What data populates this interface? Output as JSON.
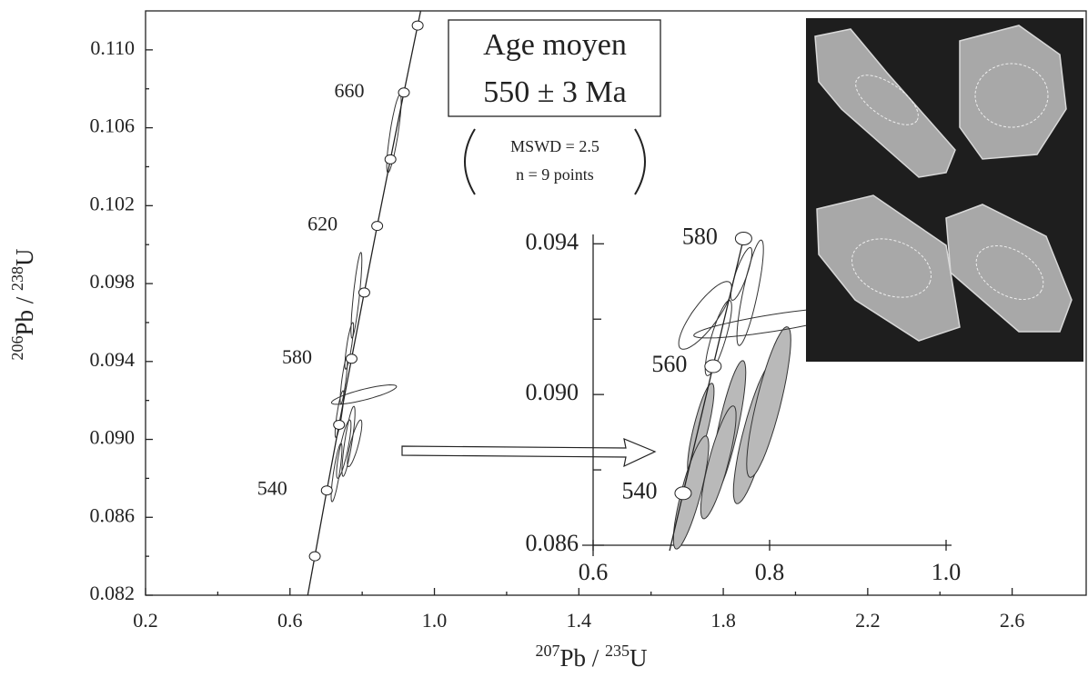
{
  "chart_data": [
    {
      "type": "concordia",
      "x_label": [
        "207",
        "Pb / ",
        "235",
        "U"
      ],
      "y_label": [
        "206",
        "Pb / ",
        "238",
        "U"
      ],
      "xlim": [
        0.2,
        2.8
      ],
      "ylim": [
        0.082,
        0.112
      ],
      "xticks": [
        0.2,
        0.6,
        {
          "value": 1,
          "label": "1.0"
        },
        1.4,
        1.8,
        2.2,
        2.6
      ],
      "xminorticks": [
        0.4,
        0.8,
        1.2,
        1.6,
        2,
        2.4
      ],
      "yticks": [
        0.082,
        0.086,
        {
          "value": 0.09,
          "label": "0.090"
        },
        0.094,
        0.098,
        0.102,
        0.106,
        {
          "value": 0.11,
          "label": "0.110"
        }
      ],
      "yminorticks": [
        0.084,
        0.088,
        0.092,
        0.096,
        0.1,
        0.104,
        0.108
      ],
      "concordia": {
        "x": [
          0.6688,
          0.702,
          0.7359,
          0.7705,
          0.8057,
          0.8415,
          0.8782,
          0.9155,
          0.9536
        ],
        "y": [
          0.084,
          0.08738,
          0.09075,
          0.09414,
          0.09754,
          0.10096,
          0.10438,
          0.10781,
          0.11125
        ],
        "labels": [
          null,
          "540",
          null,
          "580",
          null,
          "620",
          null,
          "660",
          null
        ]
      },
      "ellipses": [
        {
          "color": "none",
          "x": [
            0.888,
            0.784,
            0.764,
            0.805,
            0.749,
            0.737,
            0.779,
            0.749,
            0.729,
            0.762
          ],
          "y": [
            0.1057,
            0.0974,
            0.0948,
            0.0923,
            0.093,
            0.0913,
            0.0898,
            0.0895,
            0.0883,
            0.0899
          ],
          "dx": [
            0.02,
            0.015,
            0.012,
            0.09,
            0.01,
            0.012,
            0.02,
            0.02,
            0.015,
            0.018
          ],
          "dy": [
            0.002,
            0.0022,
            0.0012,
            0.0005,
            0.0012,
            0.0012,
            0.0012,
            0.0015,
            0.0015,
            0.0018
          ]
        }
      ],
      "annotations": {
        "title": "Age moyen",
        "age": "550 ± 3 Ma",
        "mswd": "MSWD = 2.5",
        "n": "n = 9 points"
      }
    },
    {
      "type": "concordia",
      "xlim": [
        0.6,
        1.0
      ],
      "ylim": [
        0.086,
        0.0942
      ],
      "xticks": [
        0.6,
        0.8,
        {
          "value": 1,
          "label": "1.0"
        }
      ],
      "yticks": [
        0.086,
        {
          "value": 0.09,
          "label": "0.090"
        },
        0.094
      ],
      "yminorticks": [
        0.088,
        0.092
      ],
      "concordia": {
        "x": [
          0.702,
          0.7359,
          0.7705
        ],
        "y": [
          0.08738,
          0.09075,
          0.09414
        ],
        "labels": [
          "540",
          "560",
          "580"
        ]
      },
      "ellipses": [
        {
          "color": "#b9b9b9",
          "x": [
            0.722,
            0.753,
            0.784,
            0.799,
            0.711,
            0.742
          ],
          "y": [
            0.0891,
            0.0891,
            0.089,
            0.0898,
            0.0874,
            0.0882
          ],
          "dx": [
            0.015,
            0.02,
            0.025,
            0.025,
            0.02,
            0.02
          ],
          "dy": [
            0.0012,
            0.0018,
            0.0019,
            0.002,
            0.0015,
            0.0015
          ]
        },
        {
          "color": "none",
          "x": [
            0.768,
            0.778,
            0.804,
            0.727,
            0.742
          ],
          "y": [
            0.0932,
            0.0927,
            0.0919,
            0.0921,
            0.0915
          ],
          "dx": [
            0.012,
            0.015,
            0.09,
            0.03,
            0.015
          ],
          "dy": [
            0.0007,
            0.0014,
            0.0004,
            0.0009,
            0.001
          ]
        }
      ]
    }
  ]
}
